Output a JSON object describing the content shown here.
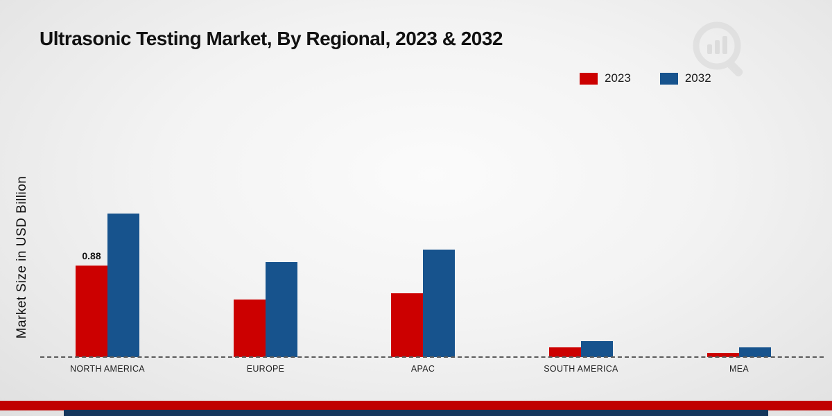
{
  "chart": {
    "title": "Ultrasonic Testing Market, By Regional, 2023 & 2032",
    "ylabel": "Market Size in USD Billion"
  },
  "chart_data": {
    "type": "bar",
    "categories": [
      "NORTH AMERICA",
      "EUROPE",
      "APAC",
      "SOUTH AMERICA",
      "MEA"
    ],
    "series": [
      {
        "name": "2023",
        "color": "#cc0000",
        "values": [
          0.88,
          0.55,
          0.61,
          0.09,
          0.04
        ],
        "labels": [
          "0.88",
          "",
          "",
          "",
          ""
        ]
      },
      {
        "name": "2032",
        "color": "#17538d",
        "values": [
          1.38,
          0.91,
          1.03,
          0.15,
          0.09
        ],
        "labels": [
          "",
          "",
          "",
          "",
          ""
        ]
      }
    ],
    "ylim": [
      0,
      1.5
    ],
    "grid": false,
    "legend_position": "top-right",
    "baseline_style": "dashed",
    "unit": "USD Billion"
  },
  "branding": {
    "watermark_icon": "magnifier-bar-chart-logo",
    "footer_red_color": "#c00000",
    "footer_navy_color": "#14365c",
    "watermark_color": "#d6d6d6"
  }
}
